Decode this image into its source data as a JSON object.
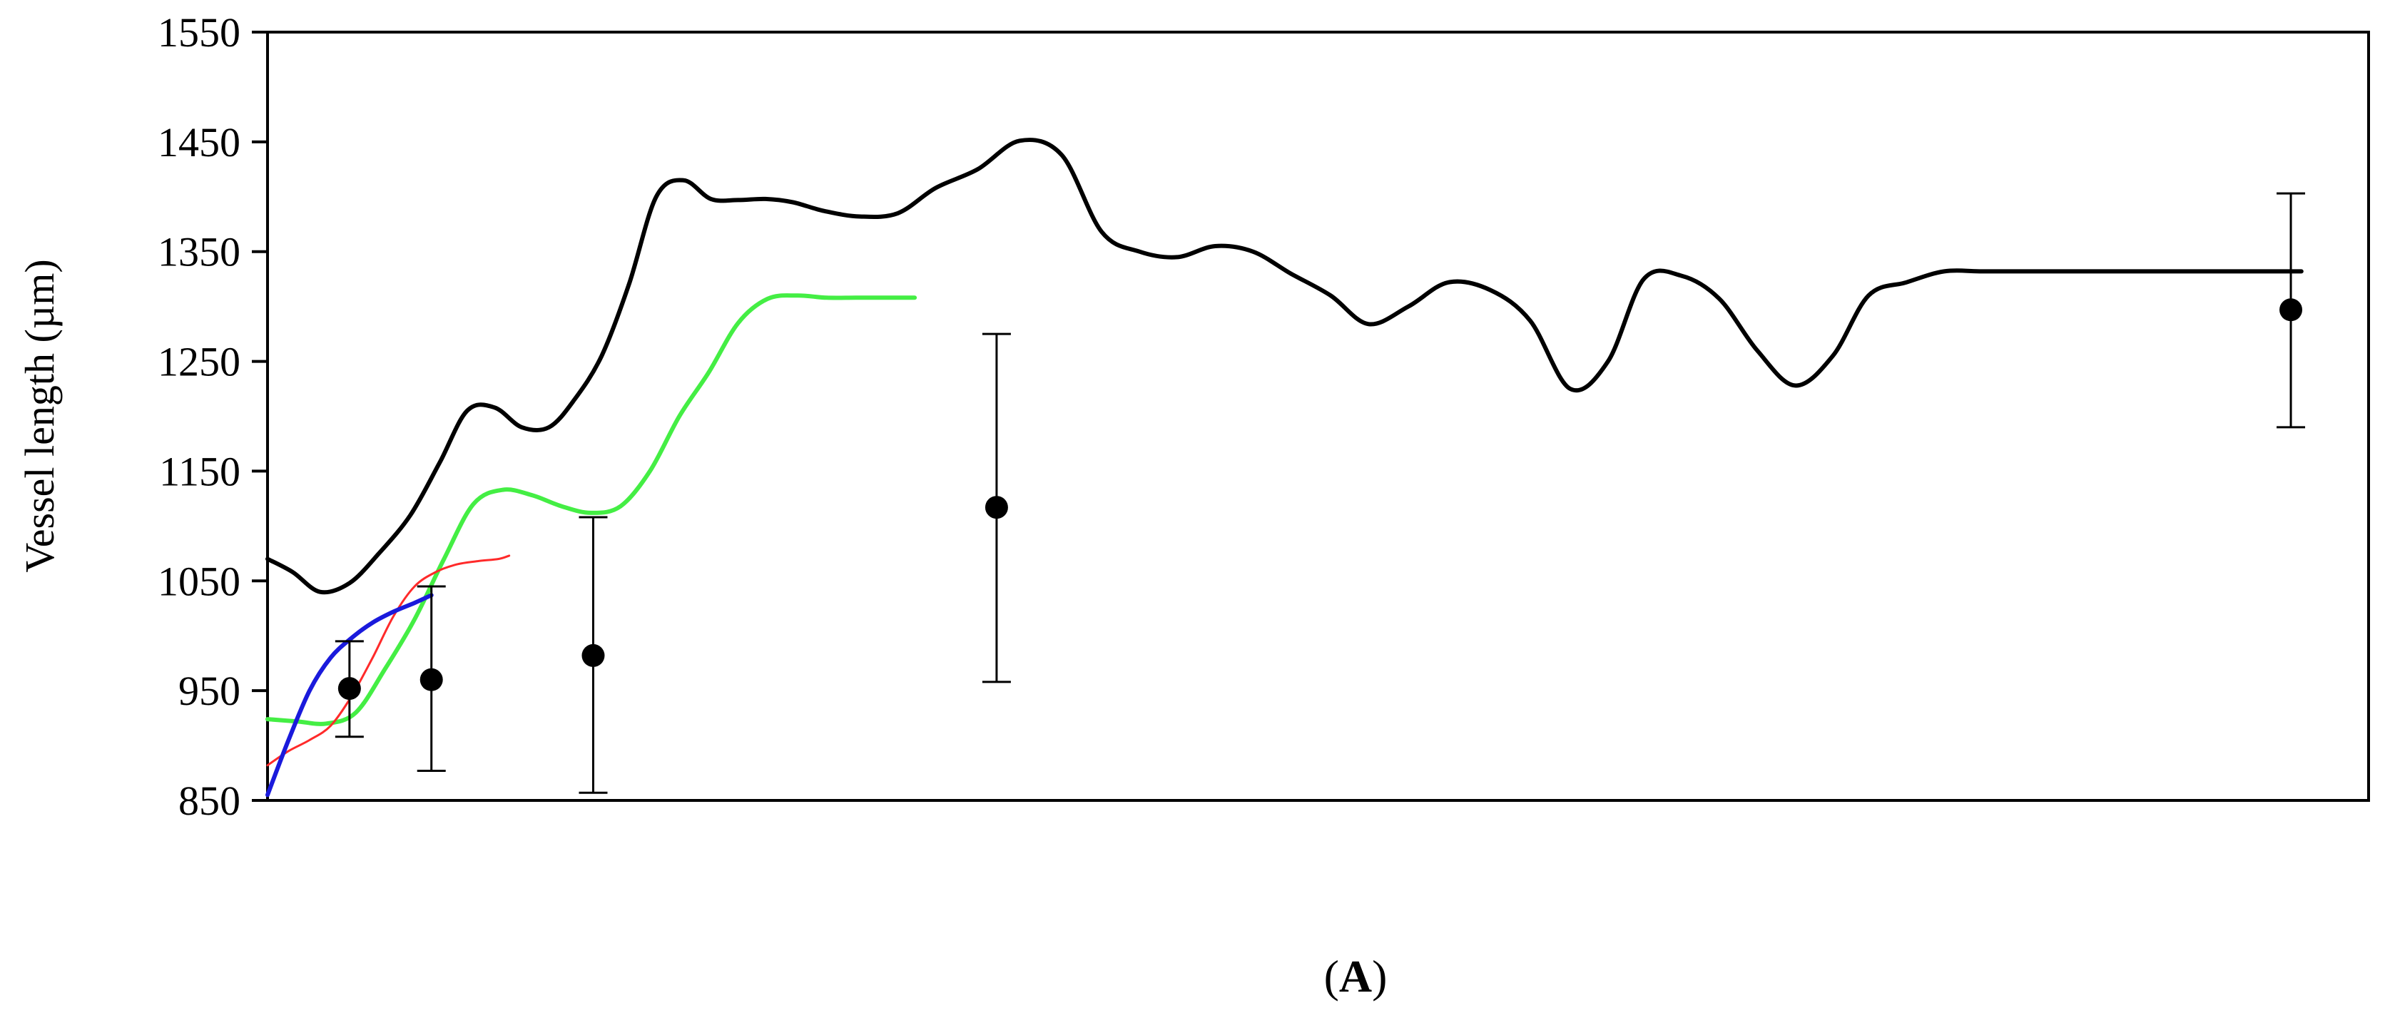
{
  "chart_data": {
    "type": "line",
    "title": "",
    "xlabel": "",
    "ylabel": "Vessel length (µm)",
    "panel_label": {
      "open": "(",
      "letter": "A",
      "close": ")"
    },
    "xlim": [
      0,
      100
    ],
    "ylim": [
      850,
      1550
    ],
    "yticks": [
      "1550",
      "1450",
      "1350",
      "1250",
      "1150",
      "1050",
      "950",
      "850"
    ],
    "yticks_values": [
      1550,
      1450,
      1350,
      1250,
      1150,
      1050,
      950,
      850
    ],
    "grid": false,
    "legend": "none",
    "series": [
      {
        "color": "#000000",
        "x": [
          0,
          1.2,
          2.5,
          3.9,
          5.3,
          6.8,
          8.2,
          9.5,
          10.8,
          12.1,
          13.4,
          14.6,
          15.9,
          17.2,
          18.5,
          19.8,
          21.1,
          22.4,
          23.7,
          25.0,
          26.5,
          28.2,
          30.0,
          31.8,
          33.8,
          35.8,
          37.8,
          39.7,
          41.5,
          43.3,
          45.1,
          46.9,
          48.7,
          50.6,
          52.4,
          54.3,
          56.2,
          58.2,
          60.1,
          62.0,
          63.8,
          65.5,
          67.3,
          69.1,
          70.9,
          72.7,
          74.5,
          76.2,
          78.0,
          79.8,
          81.6,
          83.3,
          85.1,
          86.9,
          88.7,
          90.5,
          92.3,
          94.0,
          95.8,
          96.8
        ],
        "y": [
          1070,
          1058,
          1040,
          1048,
          1075,
          1110,
          1158,
          1205,
          1208,
          1190,
          1190,
          1215,
          1255,
          1320,
          1400,
          1415,
          1398,
          1397,
          1398,
          1395,
          1387,
          1382,
          1385,
          1408,
          1425,
          1451,
          1438,
          1368,
          1350,
          1345,
          1355,
          1350,
          1330,
          1310,
          1284,
          1300,
          1322,
          1315,
          1287,
          1225,
          1250,
          1325,
          1328,
          1307,
          1260,
          1228,
          1255,
          1310,
          1322,
          1332,
          1332,
          1332,
          1332,
          1332,
          1332,
          1332,
          1332,
          1332,
          1332,
          1332
        ]
      },
      {
        "color": "#44ee44",
        "x": [
          0,
          1.4,
          2.8,
          4.2,
          5.6,
          7.0,
          8.4,
          9.8,
          11.2,
          12.6,
          14.0,
          15.4,
          16.8,
          18.2,
          19.6,
          21.0,
          22.4,
          23.8,
          25.2,
          26.6,
          28.0,
          29.4,
          30.8
        ],
        "y": [
          924,
          922,
          920,
          930,
          970,
          1015,
          1070,
          1120,
          1133,
          1128,
          1118,
          1112,
          1118,
          1150,
          1200,
          1240,
          1285,
          1307,
          1310,
          1308,
          1308,
          1308,
          1308
        ]
      },
      {
        "color": "#ff2a2a",
        "x": [
          0,
          1.0,
          2.0,
          3.0,
          4.0,
          5.0,
          6.0,
          7.0,
          8.0,
          9.0,
          10.0,
          11.0,
          11.5
        ],
        "y": [
          882,
          895,
          905,
          918,
          945,
          980,
          1018,
          1045,
          1058,
          1065,
          1068,
          1070,
          1073
        ]
      },
      {
        "color": "#1a1adc",
        "x": [
          0,
          1.0,
          2.0,
          3.0,
          4.0,
          5.0,
          6.0,
          7.0,
          7.8
        ],
        "y": [
          855,
          905,
          950,
          980,
          998,
          1012,
          1022,
          1030,
          1037
        ]
      }
    ],
    "error_points": [
      {
        "x": 3.9,
        "y": 952,
        "err_low": 908,
        "err_high": 995
      },
      {
        "x": 7.8,
        "y": 960,
        "err_low": 877,
        "err_high": 1045
      },
      {
        "x": 15.5,
        "y": 982,
        "err_low": 857,
        "err_high": 1108
      },
      {
        "x": 34.7,
        "y": 1117,
        "err_low": 958,
        "err_high": 1275
      },
      {
        "x": 96.3,
        "y": 1297,
        "err_low": 1190,
        "err_high": 1403
      }
    ]
  }
}
